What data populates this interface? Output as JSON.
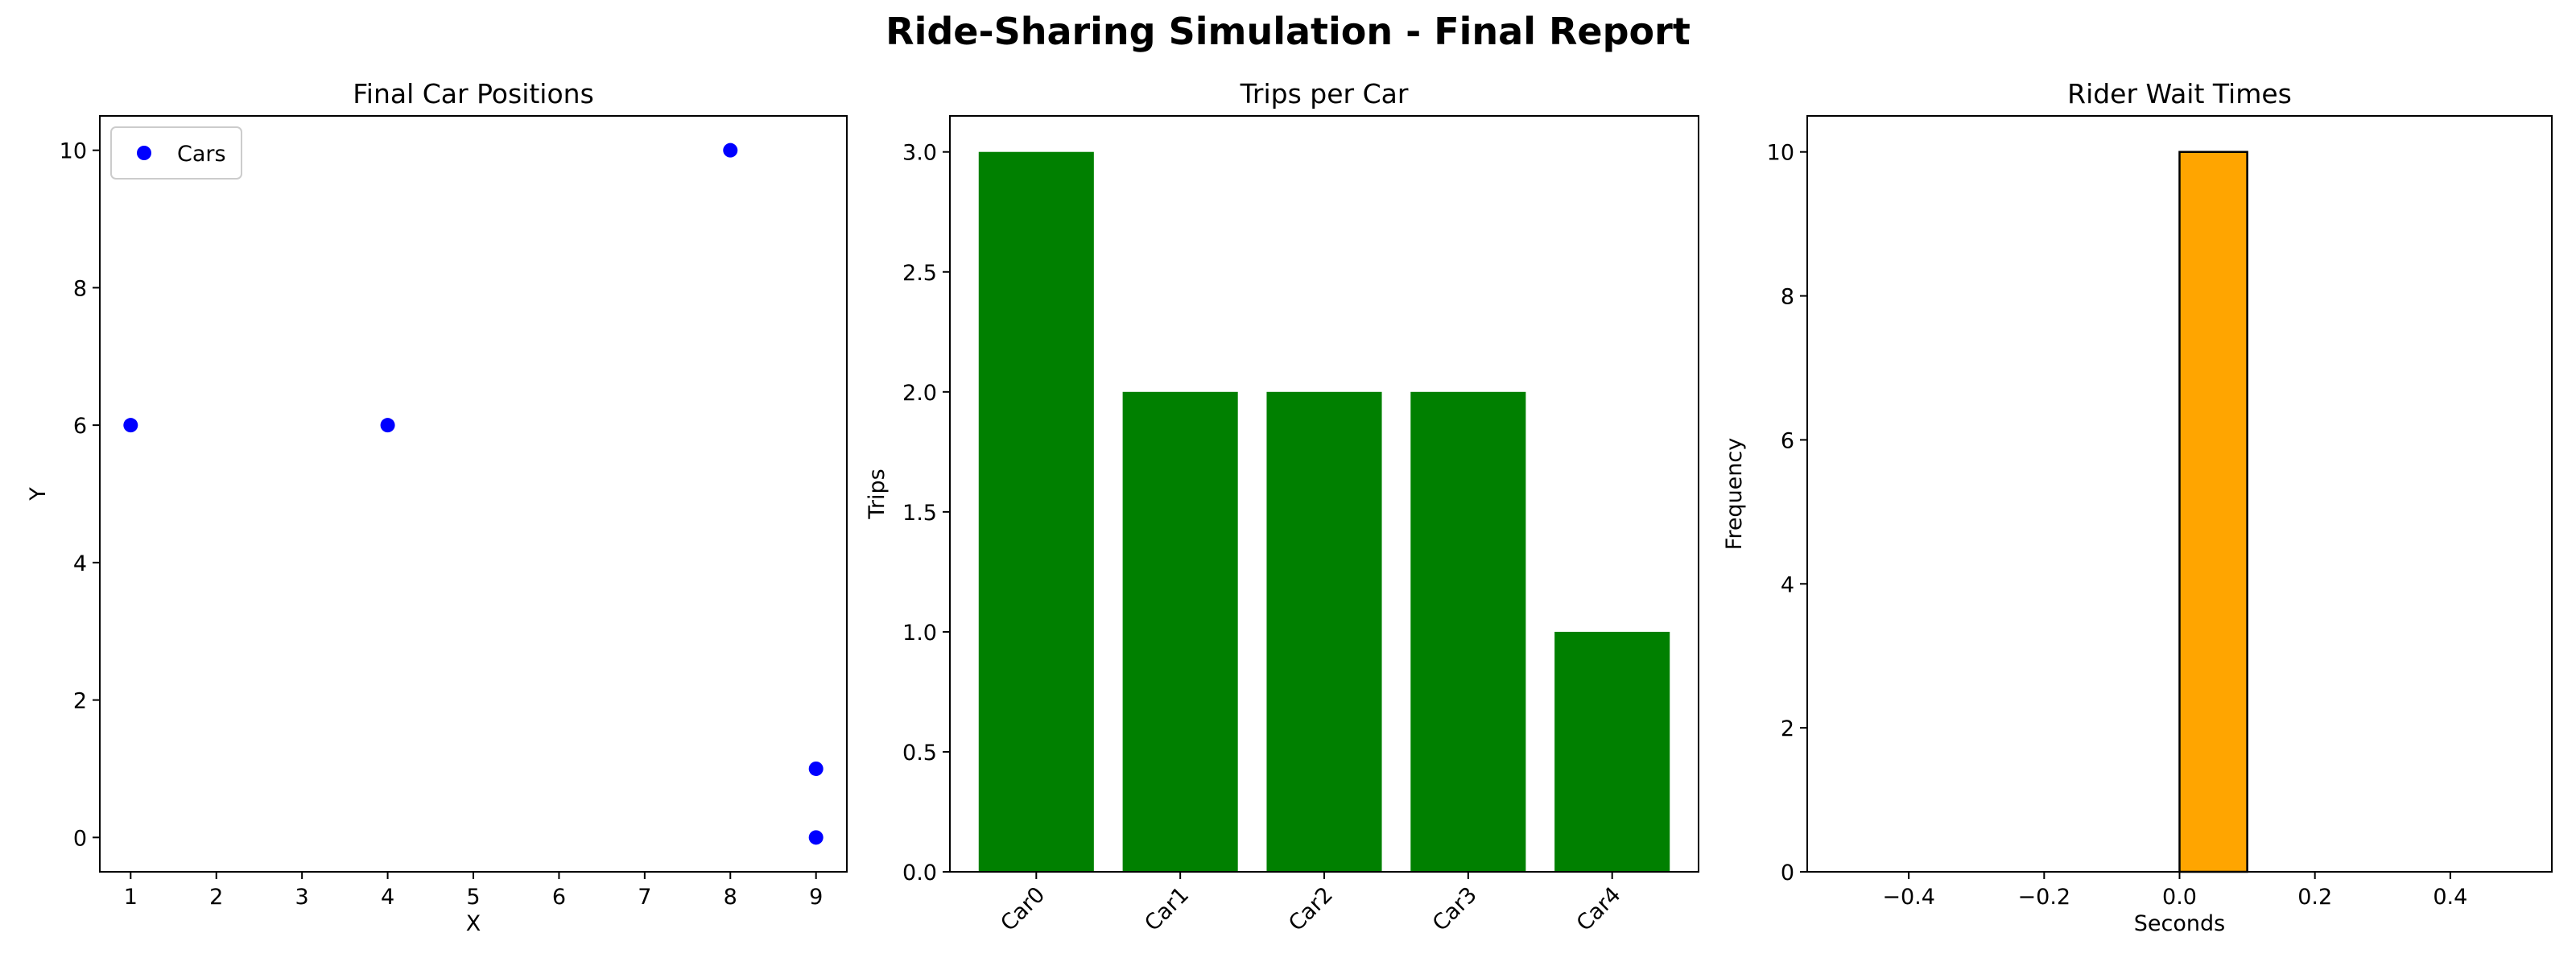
{
  "figure": {
    "title": "Ride-Sharing Simulation - Final Report"
  },
  "chart_data": [
    {
      "type": "scatter",
      "title": "Final Car Positions",
      "xlabel": "X",
      "ylabel": "Y",
      "xlim": [
        0.64,
        9.36
      ],
      "ylim": [
        -0.5,
        10.5
      ],
      "xticks": [
        1,
        2,
        3,
        4,
        5,
        6,
        7,
        8,
        9
      ],
      "yticks": [
        0,
        2,
        4,
        6,
        8,
        10
      ],
      "series": [
        {
          "name": "Cars",
          "color": "#0000ff",
          "points": [
            [
              1,
              6
            ],
            [
              4,
              6
            ],
            [
              8,
              10
            ],
            [
              9,
              1
            ],
            [
              9,
              0
            ]
          ]
        }
      ],
      "legend": {
        "position": "upper-left",
        "entries": [
          "Cars"
        ]
      },
      "grid": false
    },
    {
      "type": "bar",
      "title": "Trips per Car",
      "xlabel": "",
      "ylabel": "Trips",
      "categories": [
        "Car0",
        "Car1",
        "Car2",
        "Car3",
        "Car4"
      ],
      "values": [
        3,
        2,
        2,
        2,
        1
      ],
      "color": "#008000",
      "ylim": [
        0,
        3.15
      ],
      "yticks": [
        0.0,
        0.5,
        1.0,
        1.5,
        2.0,
        2.5,
        3.0
      ],
      "ytick_labels": [
        "0.0",
        "0.5",
        "1.0",
        "1.5",
        "2.0",
        "2.5",
        "3.0"
      ],
      "xtick_rotation": 45,
      "grid": false
    },
    {
      "type": "histogram",
      "title": "Rider Wait Times",
      "xlabel": "Seconds",
      "ylabel": "Frequency",
      "xlim": [
        -0.55,
        0.55
      ],
      "ylim": [
        0,
        10.5
      ],
      "xticks": [
        -0.4,
        -0.2,
        0.0,
        0.2,
        0.4
      ],
      "xtick_labels": [
        "−0.4",
        "−0.2",
        "0.0",
        "0.2",
        "0.4"
      ],
      "yticks": [
        0,
        2,
        4,
        6,
        8,
        10
      ],
      "bins": [
        {
          "x0": 0.0,
          "x1": 0.1,
          "count": 10
        }
      ],
      "color": "#ffa500",
      "edgecolor": "#000000",
      "grid": false
    }
  ]
}
